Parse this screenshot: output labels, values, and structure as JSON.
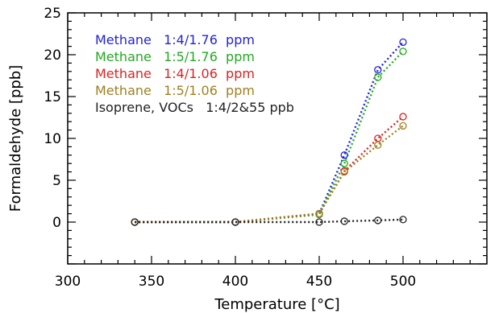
{
  "chart_data": {
    "type": "line",
    "xlabel": "Temperature [°C]",
    "ylabel": "Formaldehyde [ppb]",
    "xlim": [
      300,
      550
    ],
    "ylim": [
      -5,
      25
    ],
    "xticks": [
      300,
      350,
      400,
      450,
      500
    ],
    "yticks": [
      0,
      5,
      10,
      15,
      20,
      25
    ],
    "legend_position": "top-left",
    "grid": false,
    "series": [
      {
        "name": "Methane   1:4/1.76  ppm",
        "color": "#2222dd",
        "x": [
          340,
          400,
          450,
          465,
          485,
          500
        ],
        "y": [
          0,
          0,
          1,
          8,
          18.2,
          21.5
        ]
      },
      {
        "name": "Methane   1:5/1.76  ppm",
        "color": "#22aa22",
        "x": [
          340,
          400,
          450,
          465,
          485,
          500
        ],
        "y": [
          0,
          0,
          0.9,
          7,
          17.3,
          20.4
        ]
      },
      {
        "name": "Methane   1:4/1.06  ppm",
        "color": "#dd2222",
        "x": [
          340,
          400,
          450,
          465,
          485,
          500
        ],
        "y": [
          0,
          0,
          1,
          6.1,
          10,
          12.6
        ]
      },
      {
        "name": "Methane   1:5/1.06  ppm",
        "color": "#a08020",
        "x": [
          340,
          400,
          450,
          465,
          485,
          500
        ],
        "y": [
          0,
          0,
          1,
          6,
          9.2,
          11.5
        ]
      },
      {
        "name": "Isoprene, VOCs   1:4/2&55 ppb",
        "color": "#222222",
        "x": [
          340,
          400,
          450,
          465,
          485,
          500
        ],
        "y": [
          0,
          0,
          0,
          0.1,
          0.2,
          0.3
        ]
      }
    ]
  }
}
